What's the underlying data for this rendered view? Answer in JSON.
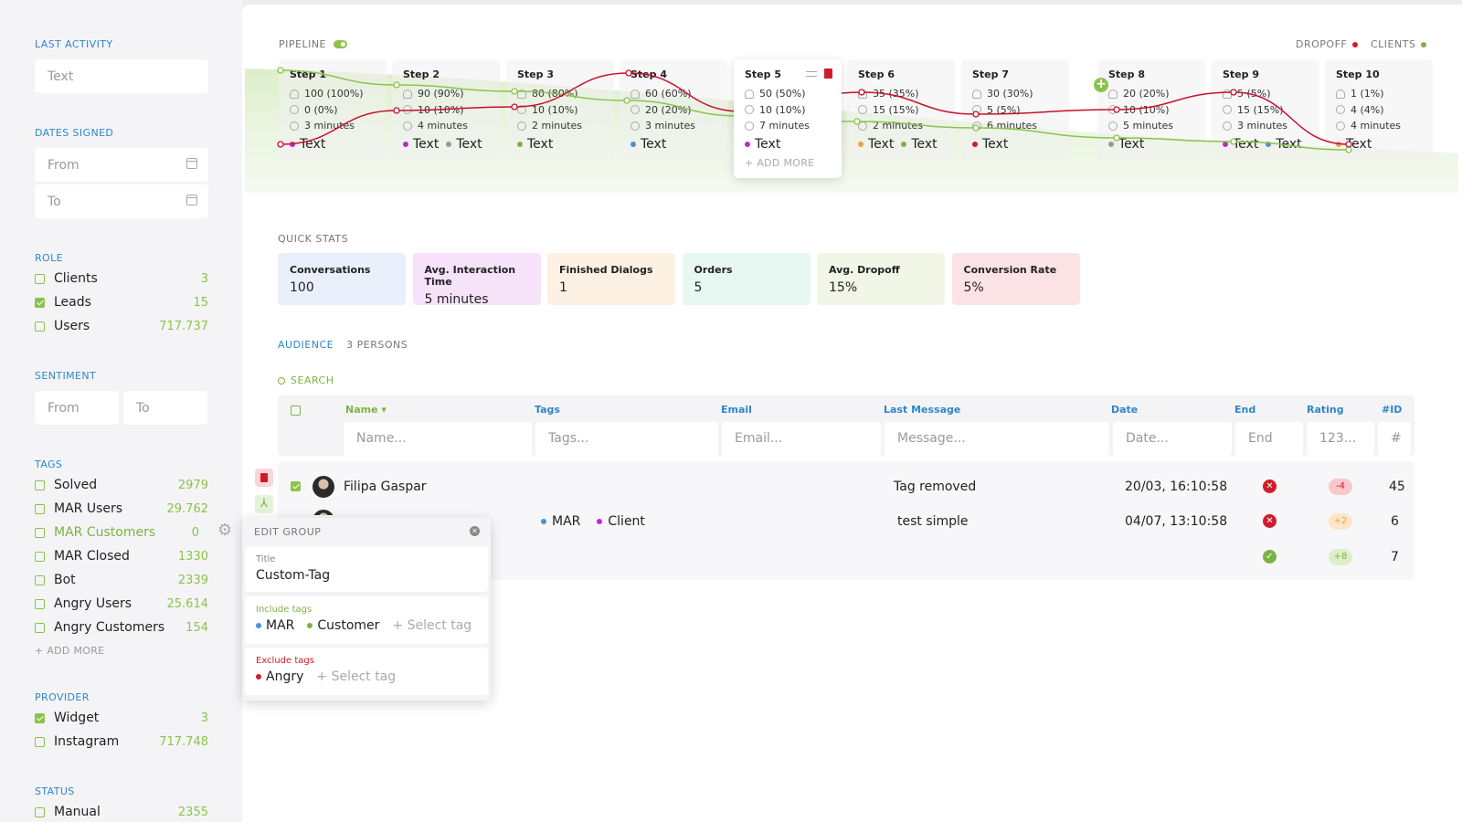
{
  "sidebar": {
    "last_activity": {
      "title": "LAST ACTIVITY",
      "placeholder": "Text"
    },
    "dates_signed": {
      "title": "DATES SIGNED",
      "from": "From",
      "to": "To"
    },
    "role": {
      "title": "ROLE",
      "items": [
        {
          "label": "Clients",
          "count": "3",
          "checked": false
        },
        {
          "label": "Leads",
          "count": "15",
          "checked": true
        },
        {
          "label": "Users",
          "count": "717.737",
          "checked": false
        }
      ]
    },
    "sentiment": {
      "title": "SENTIMENT",
      "from": "From",
      "to": "To"
    },
    "tags": {
      "title": "TAGS",
      "add_more": "+ ADD MORE",
      "items": [
        {
          "label": "Solved",
          "count": "2979"
        },
        {
          "label": "MAR Users",
          "count": "29.762"
        },
        {
          "label": "MAR Customers",
          "count": "0"
        },
        {
          "label": "MAR Closed",
          "count": "1330"
        },
        {
          "label": "Bot",
          "count": "2339"
        },
        {
          "label": "Angry Users",
          "count": "25.614"
        },
        {
          "label": "Angry Customers",
          "count": "154"
        }
      ]
    },
    "provider": {
      "title": "PROVIDER",
      "items": [
        {
          "label": "Widget",
          "count": "3",
          "checked": true
        },
        {
          "label": "Instagram",
          "count": "717.748",
          "checked": false
        }
      ]
    },
    "status": {
      "title": "STATUS",
      "items": [
        {
          "label": "Manual",
          "count": "2355"
        }
      ]
    }
  },
  "pipeline": {
    "title": "PIPELINE",
    "legend": {
      "dropoff": "DROPOFF",
      "clients": "CLIENTS"
    },
    "add_more": "+ ADD MORE",
    "steps": [
      {
        "title": "Step 1",
        "users": "100 (100%)",
        "dropped": "0 (0%)",
        "time": "3 minutes",
        "tags": [
          {
            "label": "Text",
            "color": "#c026d3"
          }
        ]
      },
      {
        "title": "Step 2",
        "users": "90 (90%)",
        "dropped": "10 (10%)",
        "time": "4 minutes",
        "tags": [
          {
            "label": "Text",
            "color": "#c026d3"
          },
          {
            "label": "Text",
            "color": "#999999"
          }
        ]
      },
      {
        "title": "Step 3",
        "users": "80 (80%)",
        "dropped": "10 (10%)",
        "time": "2 minutes",
        "tags": [
          {
            "label": "Text",
            "color": "#7cb342"
          }
        ]
      },
      {
        "title": "Step 4",
        "users": "60 (60%)",
        "dropped": "20 (20%)",
        "time": "3 minutes",
        "tags": [
          {
            "label": "Text",
            "color": "#4a90d9"
          }
        ]
      },
      {
        "title": "Step 5",
        "users": "50 (50%)",
        "dropped": "10 (10%)",
        "time": "7 minutes",
        "tags": [
          {
            "label": "Text",
            "color": "#c026d3"
          }
        ]
      },
      {
        "title": "Step 6",
        "users": "35 (35%)",
        "dropped": "15 (15%)",
        "time": "2 minutes",
        "tags": [
          {
            "label": "Text",
            "color": "#f0a040"
          },
          {
            "label": "Text",
            "color": "#7cb342"
          }
        ]
      },
      {
        "title": "Step 7",
        "users": "30 (30%)",
        "dropped": "5 (5%)",
        "time": "6 minutes",
        "tags": [
          {
            "label": "Text",
            "color": "#d01c2a"
          }
        ]
      },
      {
        "title": "Step 8",
        "users": "20 (20%)",
        "dropped": "10 (10%)",
        "time": "5 minutes",
        "tags": [
          {
            "label": "Text",
            "color": "#999999"
          }
        ]
      },
      {
        "title": "Step 9",
        "users": "5 (5%)",
        "dropped": "15 (15%)",
        "time": "3 minutes",
        "tags": [
          {
            "label": "Text",
            "color": "#c026d3"
          },
          {
            "label": "Text",
            "color": "#4a90d9"
          }
        ]
      },
      {
        "title": "Step 10",
        "users": "1 (1%)",
        "dropped": "4 (4%)",
        "time": "4 minutes",
        "tags": [
          {
            "label": "Text",
            "color": "#f0a040"
          }
        ]
      }
    ]
  },
  "quick_stats": {
    "title": "QUICK STATS",
    "items": [
      {
        "label": "Conversations",
        "value": "100",
        "bg": "#e9f0fb"
      },
      {
        "label": "Avg. Interaction Time",
        "value": "5 minutes",
        "bg": "#f6e3fa"
      },
      {
        "label": "Finished Dialogs",
        "value": "1",
        "bg": "#fdf1e4"
      },
      {
        "label": "Orders",
        "value": "5",
        "bg": "#e7f8f3"
      },
      {
        "label": "Avg. Dropoff",
        "value": "15%",
        "bg": "#f1f6e6"
      },
      {
        "label": "Conversion Rate",
        "value": "5%",
        "bg": "#fbe3e5"
      }
    ]
  },
  "audience": {
    "title": "AUDIENCE",
    "count": "3 PERSONS",
    "search": "SEARCH",
    "columns": {
      "name": "Name",
      "tags": "Tags",
      "email": "Email",
      "last_message": "Last Message",
      "date": "Date",
      "end": "End",
      "rating": "Rating",
      "id": "#ID"
    },
    "filters": {
      "name": "Name...",
      "tags": "Tags...",
      "email": "Email...",
      "message": "Message...",
      "date": "Date...",
      "end": "End",
      "rating": "123...",
      "id": "#"
    },
    "rows": [
      {
        "name": "Filipa Gaspar",
        "tags": [],
        "last_message": "Tag removed",
        "date": "20/03, 16:10:58",
        "end": "x",
        "rating": "-4",
        "id": "45"
      },
      {
        "name": "",
        "tags": [
          {
            "label": "MAR",
            "color": "#4a90d9"
          },
          {
            "label": "Client",
            "color": "#c026d3"
          }
        ],
        "last_message": "test simple",
        "date": "04/07, 13:10:58",
        "end": "x",
        "rating": "+2",
        "id": "6"
      },
      {
        "name": "",
        "tags": [],
        "last_message": "",
        "date": "",
        "end": "ok",
        "rating": "+8",
        "id": "7"
      }
    ]
  },
  "edit_group": {
    "title": "EDIT GROUP",
    "title_label": "Title",
    "title_value": "Custom-Tag",
    "include_label": "Include tags",
    "include_tags": [
      {
        "label": "MAR",
        "color": "#4a90d9"
      },
      {
        "label": "Customer",
        "color": "#7cb342"
      }
    ],
    "exclude_label": "Exclude tags",
    "exclude_tags": [
      {
        "label": "Angry",
        "color": "#d01c2a"
      }
    ],
    "select_placeholder": "+ Select tag"
  }
}
